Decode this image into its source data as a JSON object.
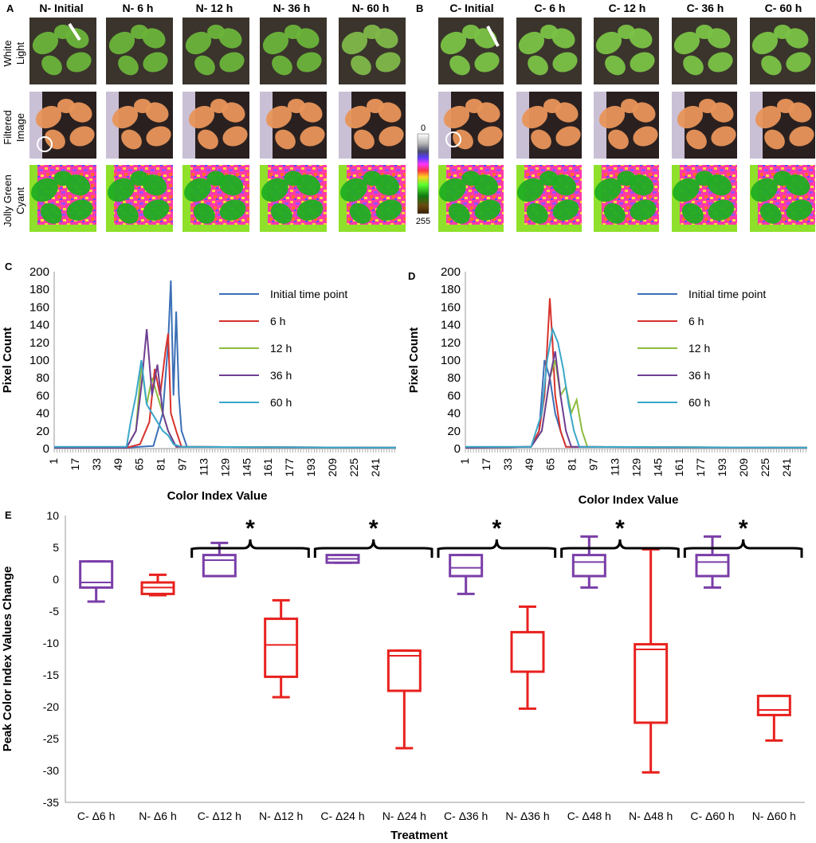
{
  "panels": {
    "A": {
      "letter": "A",
      "col_titles": [
        "N- Initial",
        "N- 6 h",
        "N- 12 h",
        "N- 36 h",
        "N- 60 h"
      ],
      "row_labels": [
        [
          "White",
          "Light"
        ],
        [
          "Filtered",
          "Image"
        ],
        [
          "Jolly Green",
          "Cyant"
        ]
      ]
    },
    "B": {
      "letter": "B",
      "col_titles": [
        "C- Initial",
        "C- 6 h",
        "C- 12 h",
        "C- 36 h",
        "C- 60 h"
      ]
    }
  },
  "colorbar": {
    "min_label": "0",
    "max_label": "255"
  },
  "chart_data": [
    {
      "panel": "C",
      "type": "line",
      "xlabel": "Color Index Value",
      "ylabel": "Pixel Count",
      "ylim": [
        0,
        200
      ],
      "y_ticks": [
        0,
        20,
        40,
        60,
        80,
        100,
        120,
        140,
        160,
        180,
        200
      ],
      "x_ticks": [
        1,
        17,
        33,
        49,
        65,
        81,
        97,
        113,
        129,
        145,
        161,
        177,
        193,
        209,
        225,
        241
      ],
      "xlim": [
        1,
        256
      ],
      "legend_position": "top-right",
      "series": [
        {
          "name": "Initial time point",
          "color": "#3b6fb6",
          "x": [
            1,
            55,
            65,
            75,
            82,
            86,
            88,
            90,
            92,
            94,
            96,
            100,
            256
          ],
          "values": [
            1,
            1,
            2,
            3,
            40,
            120,
            190,
            60,
            155,
            60,
            20,
            2,
            1
          ]
        },
        {
          "name": "6 h",
          "color": "#d8322c",
          "x": [
            1,
            55,
            65,
            72,
            76,
            80,
            84,
            86,
            88,
            92,
            96,
            256
          ],
          "values": [
            1,
            1,
            5,
            30,
            90,
            60,
            110,
            130,
            40,
            20,
            2,
            1
          ]
        },
        {
          "name": "12 h",
          "color": "#8dbb3f",
          "x": [
            1,
            55,
            62,
            66,
            70,
            74,
            78,
            82,
            86,
            92,
            256
          ],
          "values": [
            1,
            1,
            20,
            95,
            50,
            80,
            60,
            40,
            20,
            2,
            1
          ]
        },
        {
          "name": "36 h",
          "color": "#6e3f92",
          "x": [
            1,
            55,
            62,
            66,
            70,
            74,
            78,
            82,
            86,
            92,
            256
          ],
          "values": [
            1,
            1,
            20,
            70,
            135,
            60,
            95,
            40,
            20,
            2,
            1
          ]
        },
        {
          "name": "60 h",
          "color": "#3aa7c9",
          "x": [
            1,
            55,
            58,
            62,
            66,
            70,
            74,
            78,
            82,
            86,
            90,
            96,
            256
          ],
          "values": [
            2,
            2,
            30,
            60,
            100,
            50,
            40,
            30,
            20,
            15,
            5,
            2,
            1
          ]
        }
      ]
    },
    {
      "panel": "D",
      "type": "line",
      "xlabel": "Color Index Value",
      "ylabel": "Pixel Count",
      "ylim": [
        0,
        200
      ],
      "y_ticks": [
        0,
        20,
        40,
        60,
        80,
        100,
        120,
        140,
        160,
        180,
        200
      ],
      "x_ticks": [
        1,
        17,
        33,
        49,
        65,
        81,
        97,
        113,
        129,
        145,
        161,
        177,
        193,
        209,
        225,
        241
      ],
      "xlim": [
        1,
        256
      ],
      "legend_position": "top-right",
      "series": [
        {
          "name": "Initial time point",
          "color": "#3b6fb6",
          "x": [
            1,
            50,
            56,
            60,
            64,
            68,
            72,
            76,
            256
          ],
          "values": [
            1,
            2,
            20,
            100,
            80,
            40,
            20,
            2,
            1
          ]
        },
        {
          "name": "6 h",
          "color": "#d8322c",
          "x": [
            1,
            50,
            56,
            60,
            64,
            66,
            68,
            72,
            76,
            256
          ],
          "values": [
            1,
            2,
            20,
            60,
            170,
            120,
            60,
            20,
            2,
            1
          ]
        },
        {
          "name": "12 h",
          "color": "#8dbb3f",
          "x": [
            1,
            50,
            58,
            64,
            68,
            72,
            76,
            80,
            84,
            88,
            92,
            256
          ],
          "values": [
            1,
            2,
            20,
            80,
            100,
            60,
            70,
            40,
            55,
            20,
            2,
            1
          ]
        },
        {
          "name": "36 h",
          "color": "#6e3f92",
          "x": [
            1,
            50,
            58,
            64,
            68,
            72,
            76,
            80,
            256
          ],
          "values": [
            1,
            2,
            20,
            80,
            110,
            60,
            20,
            2,
            1
          ]
        },
        {
          "name": "60 h",
          "color": "#3aa7c9",
          "x": [
            1,
            50,
            58,
            62,
            66,
            70,
            74,
            78,
            82,
            86,
            256
          ],
          "values": [
            2,
            2,
            40,
            100,
            135,
            120,
            90,
            50,
            20,
            2,
            1
          ]
        }
      ]
    },
    {
      "panel": "E",
      "type": "box",
      "xlabel": "Treatment",
      "ylabel": "Peak Color Index Values Change",
      "ylim": [
        -35,
        10
      ],
      "y_ticks": [
        10,
        5,
        0,
        -5,
        -10,
        -15,
        -20,
        -25,
        -30,
        -35
      ],
      "significance_label": "*",
      "significant_pairs": [
        [
          2,
          3
        ],
        [
          4,
          5
        ],
        [
          6,
          7
        ],
        [
          8,
          9
        ],
        [
          10,
          11
        ]
      ],
      "categories": [
        "C- Δ6 h",
        "N- Δ6 h",
        "C- Δ12 h",
        "N- Δ12 h",
        "C- Δ24 h",
        "N- Δ24 h",
        "C- Δ36 h",
        "N- Δ36 h",
        "C- Δ48 h",
        "N- Δ48 h",
        "C- Δ60 h",
        "N- Δ60 h"
      ],
      "colors": [
        "#7a3ea8",
        "#e8211e",
        "#7a3ea8",
        "#e8211e",
        "#7a3ea8",
        "#e8211e",
        "#7a3ea8",
        "#e8211e",
        "#7a3ea8",
        "#e8211e",
        "#7a3ea8",
        "#e8211e"
      ],
      "boxes": [
        {
          "min": -3.5,
          "q1": -1.3,
          "median": -0.5,
          "q3": 2.8,
          "max": 2.8
        },
        {
          "min": -2.5,
          "q1": -2.3,
          "median": -1.3,
          "q3": -0.5,
          "max": 0.7
        },
        {
          "min": 0.5,
          "q1": 0.5,
          "median": 3.0,
          "q3": 3.8,
          "max": 5.7
        },
        {
          "min": -18.5,
          "q1": -15.3,
          "median": -10.3,
          "q3": -6.2,
          "max": -3.3
        },
        {
          "min": 2.6,
          "q1": 2.6,
          "median": 3.2,
          "q3": 3.8,
          "max": 3.8
        },
        {
          "min": -26.5,
          "q1": -17.5,
          "median": -12.0,
          "q3": -11.2,
          "max": -11.2
        },
        {
          "min": -2.3,
          "q1": 0.5,
          "median": 1.8,
          "q3": 3.8,
          "max": 3.8
        },
        {
          "min": -20.3,
          "q1": -14.5,
          "median": -14.5,
          "q3": -8.3,
          "max": -4.3
        },
        {
          "min": -1.3,
          "q1": 0.5,
          "median": 2.7,
          "q3": 3.8,
          "max": 6.7
        },
        {
          "min": -30.3,
          "q1": -22.5,
          "median": -11.0,
          "q3": -10.2,
          "max": 4.7
        },
        {
          "min": -1.3,
          "q1": 0.5,
          "median": 2.7,
          "q3": 3.8,
          "max": 6.7
        },
        {
          "min": -25.3,
          "q1": -21.3,
          "median": -20.5,
          "q3": -18.3,
          "max": -18.3
        }
      ]
    }
  ]
}
